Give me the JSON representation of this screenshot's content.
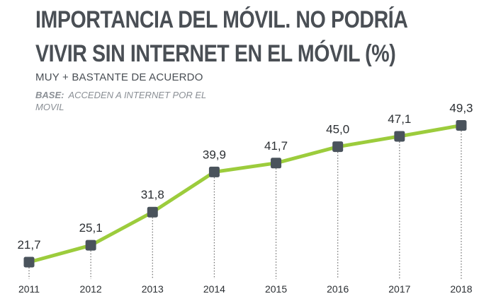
{
  "title": "IMPORTANCIA DEL MÓVIL. NO PODRÍA VIVIR SIN INTERNET EN EL MÓVIL (%)",
  "subtitle": "MUY + BASTANTE DE ACUERDO",
  "base": {
    "label": "BASE:",
    "text": "ACCEDEN A INTERNET POR EL MOVIL"
  },
  "colors": {
    "line": "#9ccc3c",
    "marker": "#4a535c",
    "dotted": "#6b6b6b",
    "text": "#2b2f33"
  },
  "chart_data": {
    "type": "line",
    "title": "IMPORTANCIA DEL MÓVIL. NO PODRÍA VIVIR SIN INTERNET EN EL MÓVIL (%)",
    "subtitle": "MUY + BASTANTE DE ACUERDO",
    "categories": [
      "2011",
      "2012",
      "2013",
      "2014",
      "2015",
      "2016",
      "2017",
      "2018"
    ],
    "values": [
      21.7,
      25.1,
      31.8,
      39.9,
      41.7,
      45.0,
      47.1,
      49.3
    ],
    "value_labels": [
      "21,7",
      "25,1",
      "31,8",
      "39,9",
      "41,7",
      "45,0",
      "47,1",
      "49,3"
    ],
    "xlabel": "",
    "ylabel": "",
    "ylim": [
      20,
      50
    ],
    "grid": false,
    "legend": "none"
  }
}
